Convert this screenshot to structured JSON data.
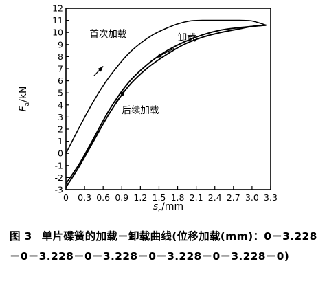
{
  "chart_data": {
    "type": "line",
    "xlabel": "s_c/mm",
    "ylabel": "F_a/kN",
    "xlim": [
      0,
      3.3
    ],
    "ylim": [
      -3,
      12
    ],
    "x_ticks": [
      "0",
      "0.3",
      "0.6",
      "0.9",
      "1.2",
      "1.5",
      "1.8",
      "2.1",
      "2.4",
      "2.7",
      "3.0",
      "3.3"
    ],
    "y_ticks": [
      "-3",
      "-2",
      "-1",
      "0",
      "1",
      "2",
      "3",
      "4",
      "5",
      "6",
      "7",
      "8",
      "9",
      "10",
      "11",
      "12"
    ],
    "grid": false,
    "series": [
      {
        "name": "首次加载",
        "x": [
          0,
          0.2,
          0.4,
          0.6,
          0.8,
          1.0,
          1.2,
          1.4,
          1.6,
          1.8,
          2.0,
          2.2,
          2.4,
          2.6,
          2.8,
          3.0,
          3.228
        ],
        "y": [
          0,
          2.0,
          3.9,
          5.6,
          7.0,
          8.2,
          9.1,
          9.8,
          10.3,
          10.7,
          10.95,
          11.0,
          11.0,
          11.0,
          11.0,
          10.95,
          10.6
        ]
      },
      {
        "name": "卸载",
        "x": [
          3.228,
          3.0,
          2.8,
          2.5,
          2.2,
          1.9,
          1.6,
          1.3,
          1.0,
          0.7,
          0.4,
          0.2,
          0.0
        ],
        "y": [
          10.6,
          10.5,
          10.4,
          10.2,
          9.8,
          9.2,
          8.4,
          7.3,
          5.8,
          3.6,
          0.8,
          -1.0,
          -2.5
        ]
      },
      {
        "name": "后续加载",
        "x": [
          0.0,
          0.2,
          0.4,
          0.7,
          1.0,
          1.3,
          1.6,
          1.9,
          2.2,
          2.5,
          2.8,
          3.0,
          3.228
        ],
        "y": [
          -2.8,
          -1.2,
          0.6,
          3.3,
          5.5,
          7.0,
          8.1,
          9.0,
          9.6,
          10.0,
          10.3,
          10.5,
          10.6
        ]
      }
    ],
    "annotations": [
      {
        "text": "首次加载",
        "x": 0.68,
        "y": 9.6,
        "arrow": {
          "from": [
            0.45,
            6.4
          ],
          "to": [
            0.6,
            7.2
          ]
        }
      },
      {
        "text": "卸载",
        "x": 1.95,
        "y": 9.3,
        "arrow": {
          "from": [
            1.75,
            8.7
          ],
          "to": [
            1.45,
            7.9
          ]
        }
      },
      {
        "text": "后续加载",
        "x": 1.2,
        "y": 3.3,
        "arrow": {
          "from": [
            0.8,
            4.2
          ],
          "to": [
            0.95,
            5.2
          ]
        }
      }
    ]
  },
  "caption": {
    "label": "图 3",
    "text": "单片碟簧的加载－卸载曲线(位移加载(mm)：0－3.228－0－3.228－0－3.228－0－3.228－0－3.228－0)"
  }
}
